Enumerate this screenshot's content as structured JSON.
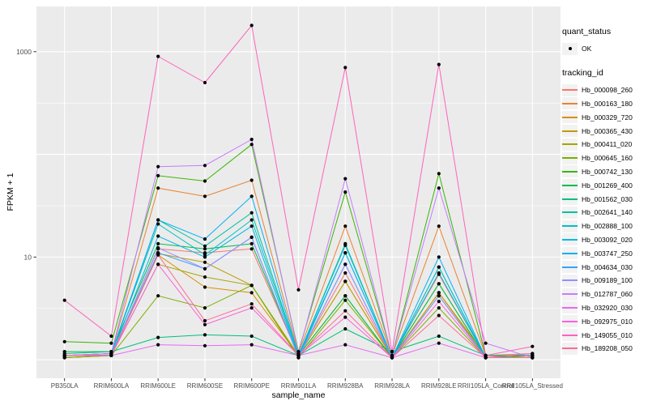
{
  "chart_data": {
    "type": "line",
    "title": "",
    "xlabel": "sample_name",
    "ylabel": "FPKM + 1",
    "y_scale": "log10",
    "y_axis": {
      "ticks": [
        {
          "label": "1000",
          "value": 1000
        },
        {
          "label": "10",
          "value": 10
        }
      ],
      "major_gridlines": [
        1,
        10,
        100,
        1000
      ],
      "minor_gridlines": [
        3.162,
        31.62,
        316.2
      ],
      "log_range": [
        -0.18,
        3.44
      ]
    },
    "categories": [
      "PB350LA",
      "RRIM600LA",
      "RRIM600LE",
      "RRIM600SE",
      "RRIM600PE",
      "RRIM901LA",
      "RRIM928BA",
      "RRIM928LA",
      "RRIM928LE",
      "RRII105LA_Control",
      "RRII105LA_Stressed"
    ],
    "legend": {
      "quant_status_title": "quant_status",
      "ok_label": "OK",
      "tracking_id_title": "tracking_id",
      "position": "right"
    },
    "colors": {
      "panel_bg": "#EBEBEB",
      "grid": "#FFFFFF",
      "point": "#000000",
      "tick_text": "#4D4D4D",
      "tick_mark": "#333333",
      "key_bg": "#F2F2F2"
    },
    "series": [
      {
        "name": "Hb_000098_260",
        "color": "#F8766D",
        "values": [
          1.1,
          1.1,
          12.0,
          11.0,
          12.0,
          1.1,
          7.0,
          1.05,
          6.8,
          1.05,
          1.05
        ]
      },
      {
        "name": "Hb_000163_180",
        "color": "#EA8331",
        "values": [
          1.1,
          1.15,
          47.0,
          39.0,
          56.0,
          1.15,
          20.0,
          1.1,
          20.0,
          1.1,
          1.15
        ]
      },
      {
        "name": "Hb_000329_720",
        "color": "#D89000",
        "values": [
          1.05,
          1.1,
          10.5,
          5.1,
          4.5,
          1.1,
          5.8,
          1.05,
          4.5,
          1.05,
          1.05
        ]
      },
      {
        "name": "Hb_000365_430",
        "color": "#C09B00",
        "values": [
          1.05,
          1.1,
          10.8,
          8.9,
          5.3,
          1.1,
          5.8,
          1.05,
          4.5,
          1.1,
          1.05
        ]
      },
      {
        "name": "Hb_000411_020",
        "color": "#A3A500",
        "values": [
          1.05,
          1.1,
          8.5,
          6.4,
          5.3,
          1.1,
          4.2,
          1.05,
          5.5,
          1.05,
          1.05
        ]
      },
      {
        "name": "Hb_000645_160",
        "color": "#7CAE00",
        "values": [
          1.05,
          1.1,
          4.2,
          3.2,
          5.3,
          1.05,
          3.8,
          1.05,
          3.2,
          1.05,
          1.05
        ]
      },
      {
        "name": "Hb_000742_130",
        "color": "#39B600",
        "values": [
          1.5,
          1.45,
          62.0,
          55.0,
          125.0,
          1.2,
          43.0,
          1.1,
          65.0,
          1.1,
          1.1
        ]
      },
      {
        "name": "Hb_001269_400",
        "color": "#00BB4E",
        "values": [
          1.2,
          1.2,
          13.5,
          12.0,
          13.5,
          1.1,
          4.2,
          1.05,
          5.5,
          1.05,
          1.1
        ]
      },
      {
        "name": "Hb_001562_030",
        "color": "#00BF7D",
        "values": [
          1.15,
          1.2,
          1.65,
          1.75,
          1.7,
          1.1,
          2.0,
          1.2,
          1.7,
          1.1,
          1.1
        ]
      },
      {
        "name": "Hb_002641_140",
        "color": "#00C1A3",
        "values": [
          1.1,
          1.15,
          23.0,
          12.8,
          27.0,
          1.1,
          13.5,
          1.05,
          8.0,
          1.05,
          1.05
        ]
      },
      {
        "name": "Hb_002888_100",
        "color": "#00BFC4",
        "values": [
          1.1,
          1.15,
          21.0,
          10.5,
          23.0,
          1.1,
          13.0,
          1.05,
          8.0,
          1.05,
          1.05
        ]
      },
      {
        "name": "Hb_003092_020",
        "color": "#00BAE0",
        "values": [
          1.1,
          1.1,
          16.0,
          10.0,
          20.0,
          1.05,
          11.0,
          1.05,
          7.0,
          1.05,
          1.05
        ]
      },
      {
        "name": "Hb_003747_250",
        "color": "#00B0F6",
        "values": [
          1.1,
          1.15,
          23.0,
          15.0,
          39.0,
          1.1,
          11.0,
          1.05,
          10.0,
          1.05,
          1.05
        ]
      },
      {
        "name": "Hb_004634_030",
        "color": "#35A2FF",
        "values": [
          1.1,
          1.1,
          11.0,
          7.7,
          15.6,
          1.05,
          8.5,
          1.05,
          4.2,
          1.05,
          1.05
        ]
      },
      {
        "name": "Hb_009189_100",
        "color": "#9590FF",
        "values": [
          1.1,
          1.1,
          12.3,
          7.7,
          15.6,
          1.05,
          8.5,
          1.05,
          4.2,
          1.05,
          1.05
        ]
      },
      {
        "name": "Hb_012787_060",
        "color": "#C77CFF",
        "values": [
          1.1,
          1.15,
          76.0,
          78.0,
          140.0,
          1.15,
          58.0,
          1.1,
          47.0,
          1.45,
          1.05
        ]
      },
      {
        "name": "Hb_032920_030",
        "color": "#E76BF3",
        "values": [
          1.1,
          1.1,
          1.4,
          1.37,
          1.4,
          1.1,
          1.4,
          1.05,
          1.45,
          1.05,
          1.05
        ]
      },
      {
        "name": "Hb_092975_010",
        "color": "#FA62DB",
        "values": [
          1.1,
          1.1,
          8.5,
          2.2,
          3.2,
          1.1,
          2.6,
          1.05,
          3.7,
          1.05,
          1.15
        ]
      },
      {
        "name": "Hb_149055_010",
        "color": "#FF62BC",
        "values": [
          3.8,
          1.7,
          900.0,
          500.0,
          1800.0,
          4.8,
          700.0,
          1.2,
          750.0,
          1.1,
          1.35
        ]
      },
      {
        "name": "Hb_189208_050",
        "color": "#FF6A98",
        "values": [
          1.1,
          1.1,
          10.5,
          2.4,
          3.5,
          1.1,
          3.0,
          1.05,
          2.7,
          1.05,
          1.05
        ]
      }
    ]
  }
}
